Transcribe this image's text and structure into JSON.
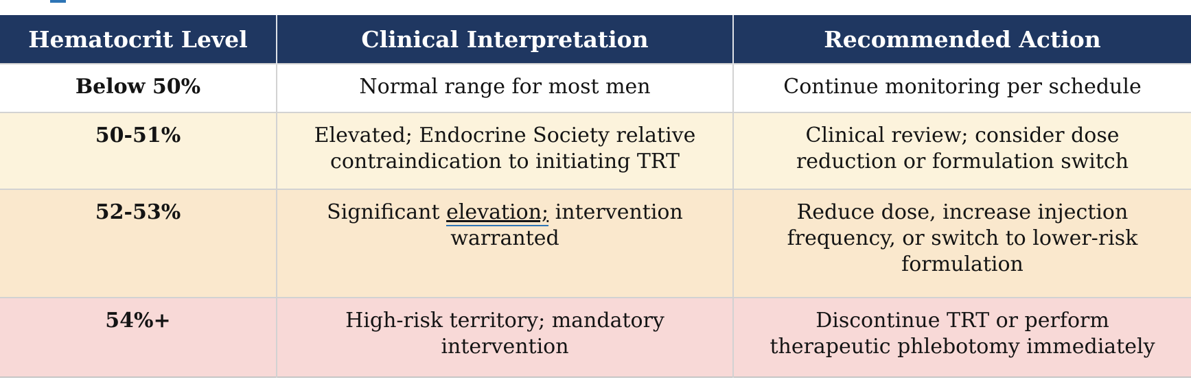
{
  "decorations": {
    "clipped_element_color": "#2e75b6"
  },
  "table": {
    "header_bg": "#1f3761",
    "header_text_color": "#ffffff",
    "columns": [
      {
        "label": "Hematocrit Level"
      },
      {
        "label": "Clinical Interpretation"
      },
      {
        "label": "Recommended Action"
      }
    ],
    "rows": [
      {
        "level": "Below 50%",
        "interpretation": "Normal range for most men",
        "action": "Continue monitoring per schedule",
        "bg": "#ffffff"
      },
      {
        "level": "50-51%",
        "interpretation": "Elevated; Endocrine Society relative contraindication to initiating TRT",
        "action": "Clinical review; consider dose reduction or formulation switch",
        "bg": "#fcf3dc"
      },
      {
        "level": "52-53%",
        "interpretation_parts": {
          "before": "Significant ",
          "link": "elevation;",
          "after": " intervention warranted"
        },
        "action": "Reduce dose, increase injection frequency, or switch to lower-risk formulation",
        "bg": "#fae8cd"
      },
      {
        "level": "54%+",
        "interpretation": "High-risk territory; mandatory intervention",
        "action": "Discontinue TRT or perform therapeutic phlebotomy immediately",
        "bg": "#f8d9d7"
      }
    ]
  }
}
